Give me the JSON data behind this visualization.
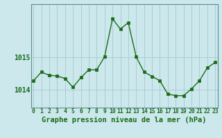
{
  "x": [
    0,
    1,
    2,
    3,
    4,
    5,
    6,
    7,
    8,
    9,
    10,
    11,
    12,
    13,
    14,
    15,
    16,
    17,
    18,
    19,
    20,
    21,
    22,
    23
  ],
  "y": [
    1014.28,
    1014.55,
    1014.45,
    1014.43,
    1014.35,
    1014.08,
    1014.38,
    1014.62,
    1014.62,
    1015.02,
    1016.2,
    1015.88,
    1016.08,
    1015.02,
    1014.55,
    1014.42,
    1014.28,
    1013.87,
    1013.82,
    1013.82,
    1014.03,
    1014.28,
    1014.68,
    1014.85
  ],
  "line_color": "#1a6b1a",
  "marker_color": "#1a6b1a",
  "bg_color": "#cce8ec",
  "grid_color": "#aacdd4",
  "ylabel_ticks": [
    1014,
    1015
  ],
  "xlabel_label": "Graphe pression niveau de la mer (hPa)",
  "ylim_min": 1013.45,
  "ylim_max": 1016.65,
  "xlim_min": -0.3,
  "xlim_max": 23.3,
  "tick_labels": [
    "0",
    "1",
    "2",
    "3",
    "4",
    "5",
    "6",
    "7",
    "8",
    "9",
    "10",
    "11",
    "12",
    "13",
    "14",
    "15",
    "16",
    "17",
    "18",
    "19",
    "20",
    "21",
    "22",
    "23"
  ],
  "xlabel_fontsize": 7.5,
  "ytick_fontsize": 7.0,
  "xtick_fontsize": 5.8
}
